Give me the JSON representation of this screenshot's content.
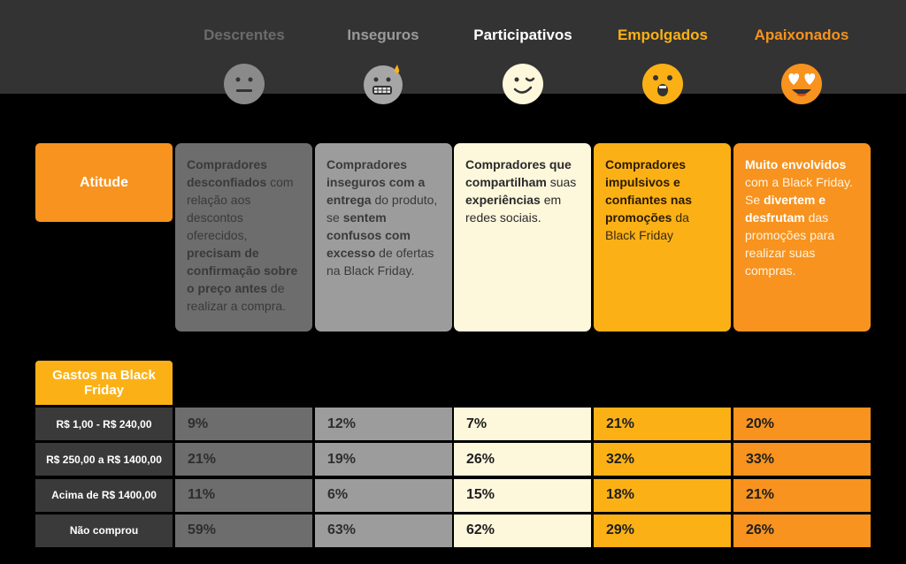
{
  "columns": [
    {
      "title": "Descrentes",
      "title_color": "#6b6b6b",
      "face": "neutral-face-icon",
      "face_color": "#8a8a8a"
    },
    {
      "title": "Inseguros",
      "title_color": "#9a9a9a",
      "face": "grimacing-sweat-face-icon",
      "face_color": "#a6a6a6"
    },
    {
      "title": "Participativos",
      "title_color": "#ffffff",
      "face": "winking-face-icon",
      "face_color": "#fdf7dc"
    },
    {
      "title": "Empolgados",
      "title_color": "#fbb116",
      "face": "surprised-face-icon",
      "face_color": "#fbb116"
    },
    {
      "title": "Apaixonados",
      "title_color": "#f7931e",
      "face": "heart-eyes-face-icon",
      "face_color": "#f7931e"
    }
  ],
  "attitude": {
    "label": "Atitude",
    "cards": [
      [
        {
          "t": "Compradores desconfiados",
          "b": true
        },
        {
          "t": " com relação aos descontos oferecidos, ",
          "b": false
        },
        {
          "t": "precisam de confirmação sobre o preço antes",
          "b": true
        },
        {
          "t": " de realizar a compra.",
          "b": false
        }
      ],
      [
        {
          "t": "Compradores inseguros com a entrega",
          "b": true
        },
        {
          "t": " do produto, se ",
          "b": false
        },
        {
          "t": "sentem confusos com excesso",
          "b": true
        },
        {
          "t": " de ofertas na Black Friday.",
          "b": false
        }
      ],
      [
        {
          "t": "Compradores que compartilham",
          "b": true
        },
        {
          "t": " suas ",
          "b": false
        },
        {
          "t": "experiências",
          "b": true
        },
        {
          "t": " em redes sociais.",
          "b": false
        }
      ],
      [
        {
          "t": "Compradores impulsivos e confiantes nas promoções",
          "b": true
        },
        {
          "t": " da Black Friday",
          "b": false
        }
      ],
      [
        {
          "t": "Muito envolvidos",
          "b": true
        },
        {
          "t": " com a Black Friday. Se ",
          "b": false
        },
        {
          "t": "divertem e desfrutam",
          "b": true
        },
        {
          "t": " das promoções para realizar suas compras.",
          "b": false
        }
      ]
    ]
  },
  "spending": {
    "label": "Gastos na Black Friday",
    "rows": [
      {
        "label": "R$ 1,00 - R$ 240,00",
        "values": [
          "9%",
          "12%",
          "7%",
          "21%",
          "20%"
        ]
      },
      {
        "label": "R$ 250,00 a R$ 1400,00",
        "values": [
          "21%",
          "19%",
          "26%",
          "32%",
          "33%"
        ]
      },
      {
        "label": "Acima de R$ 1400,00",
        "values": [
          "11%",
          "6%",
          "15%",
          "18%",
          "21%"
        ]
      },
      {
        "label": "Não comprou",
        "values": [
          "59%",
          "63%",
          "62%",
          "29%",
          "26%"
        ]
      }
    ]
  }
}
